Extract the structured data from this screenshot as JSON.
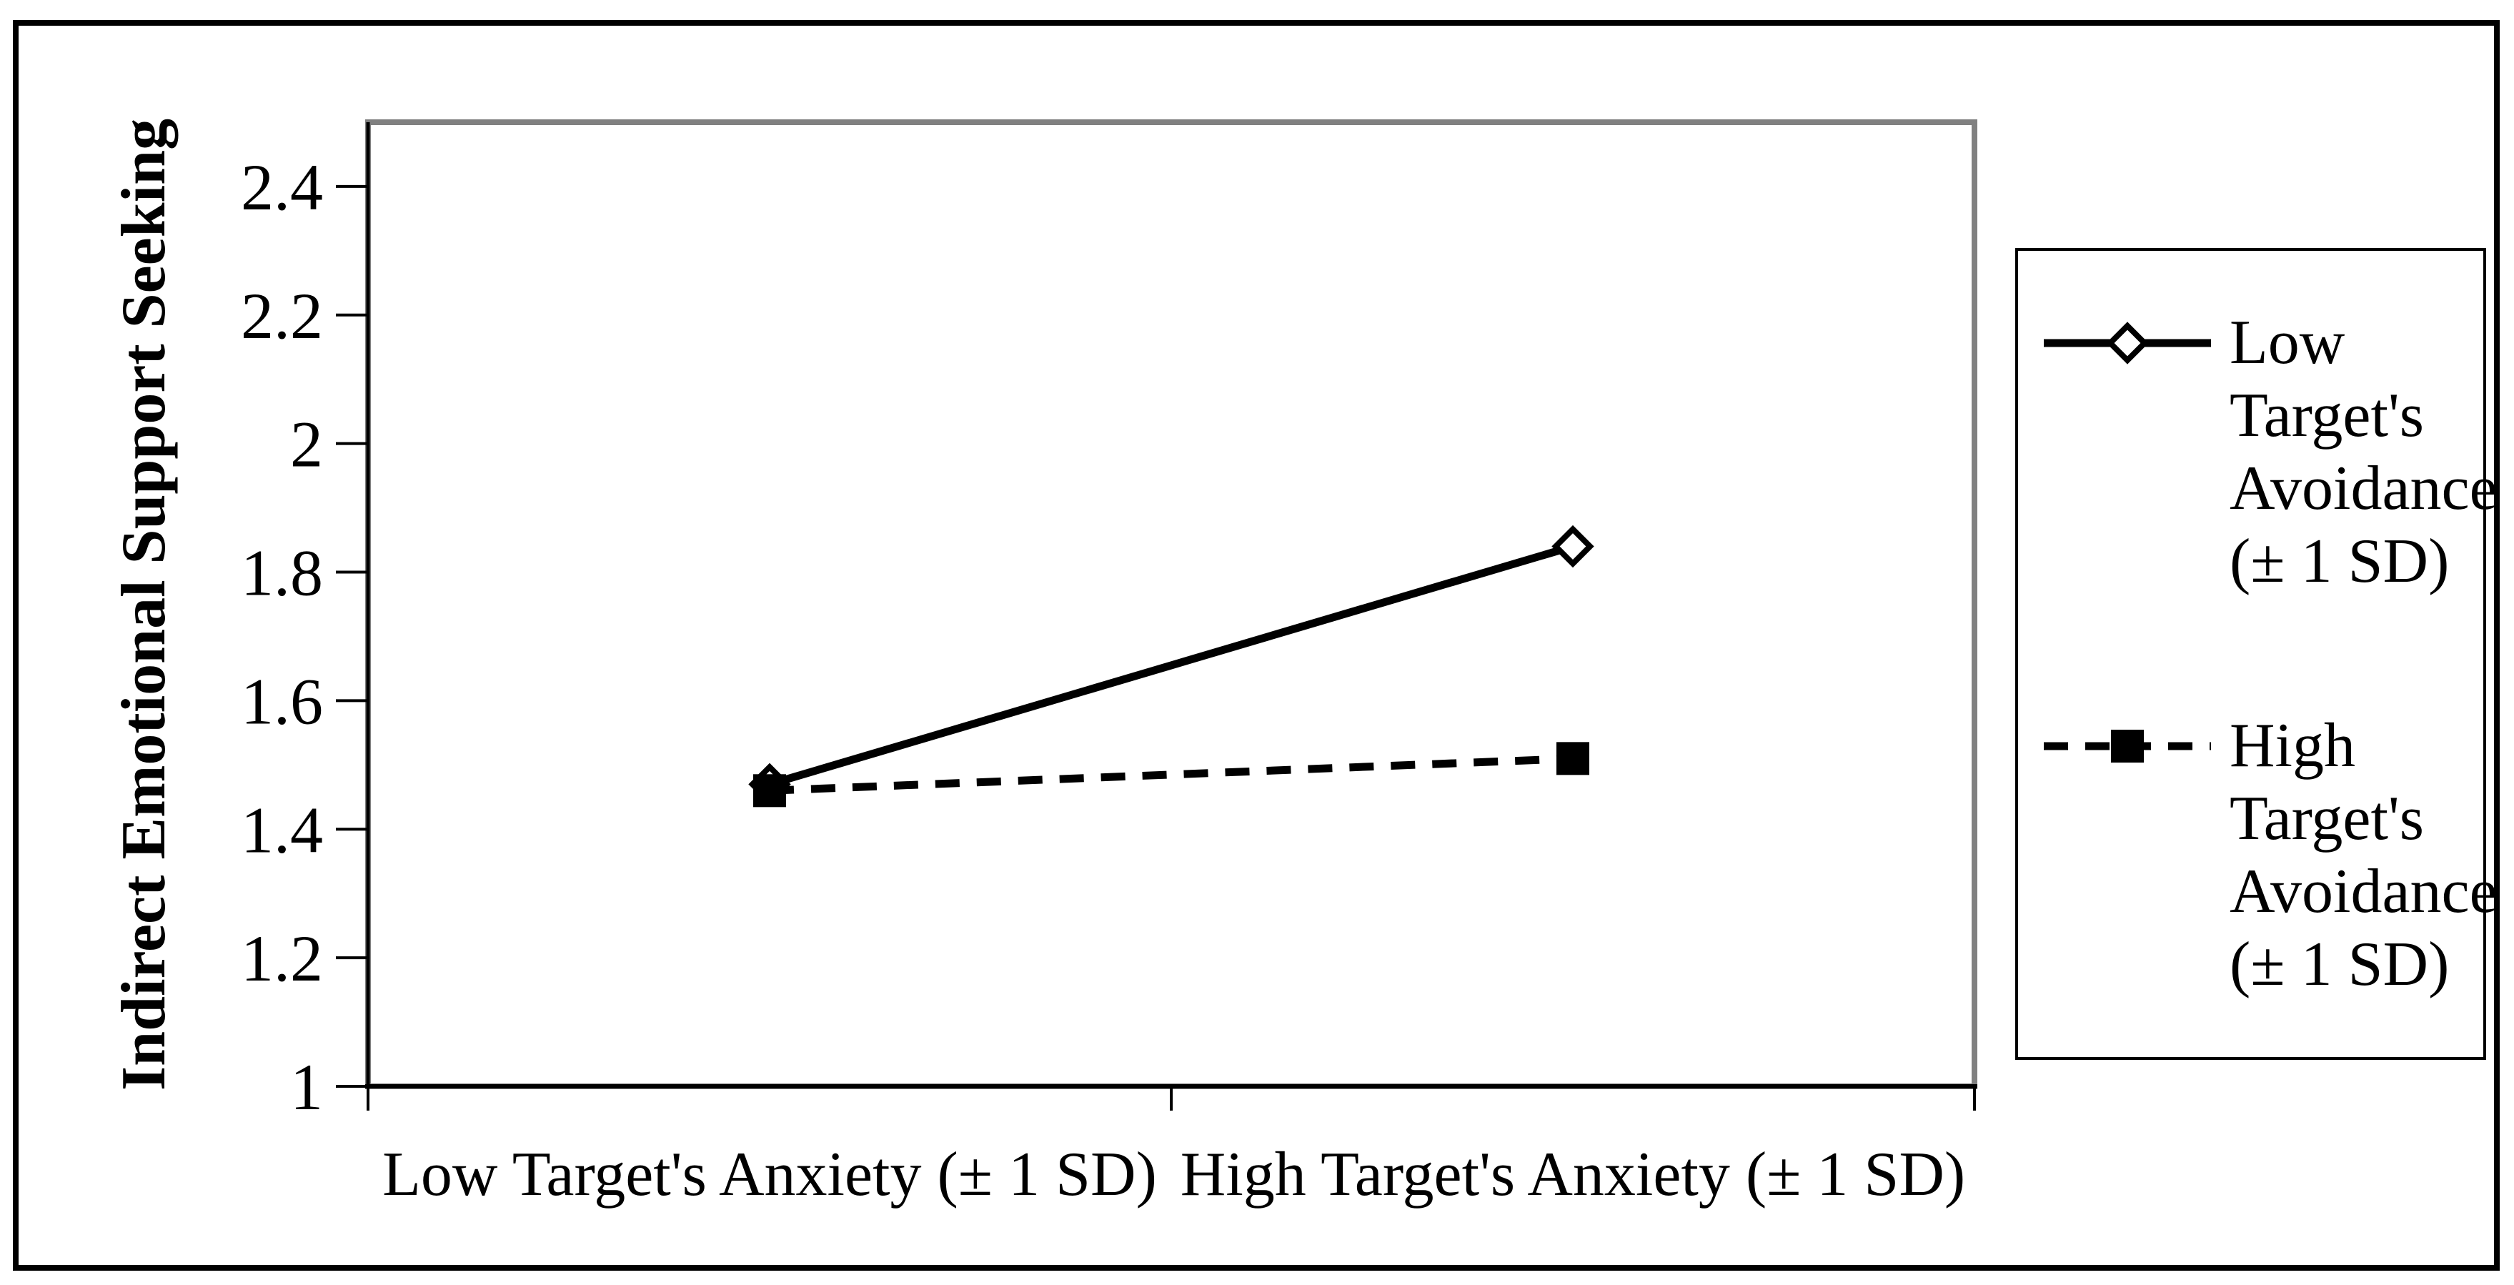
{
  "chart_data": {
    "type": "line",
    "title": "",
    "categories": [
      "Low Target's Anxiety (± 1 SD)",
      "High Target's Anxiety (± 1 SD)"
    ],
    "series": [
      {
        "name": "Low Target's Avoidance (± 1 SD)",
        "values": [
          1.47,
          1.84
        ],
        "line_style": "solid",
        "marker": "open-diamond",
        "color": "#000000",
        "legend_label_lines": [
          "Low",
          "Target's",
          "Avoidance",
          "(± 1 SD)"
        ]
      },
      {
        "name": "High Target's Avoidance (± 1 SD)",
        "values": [
          1.46,
          1.51
        ],
        "line_style": "dashed",
        "marker": "filled-square",
        "color": "#000000",
        "legend_label_lines": [
          "High",
          "Target's",
          "Avoidance",
          "(± 1 SD)"
        ]
      }
    ],
    "xlabel": "",
    "ylabel": "Indirect Emotional Support Seeking",
    "ylim": [
      1,
      2.5
    ],
    "yticks": [
      "1",
      "1.2",
      "1.4",
      "1.6",
      "1.8",
      "2",
      "2.2",
      "2.4"
    ],
    "grid": false,
    "legend_position": "right",
    "colors": {
      "series": "#000000",
      "plot_border": "#808080",
      "axis": "#000000",
      "background": "#ffffff"
    }
  }
}
